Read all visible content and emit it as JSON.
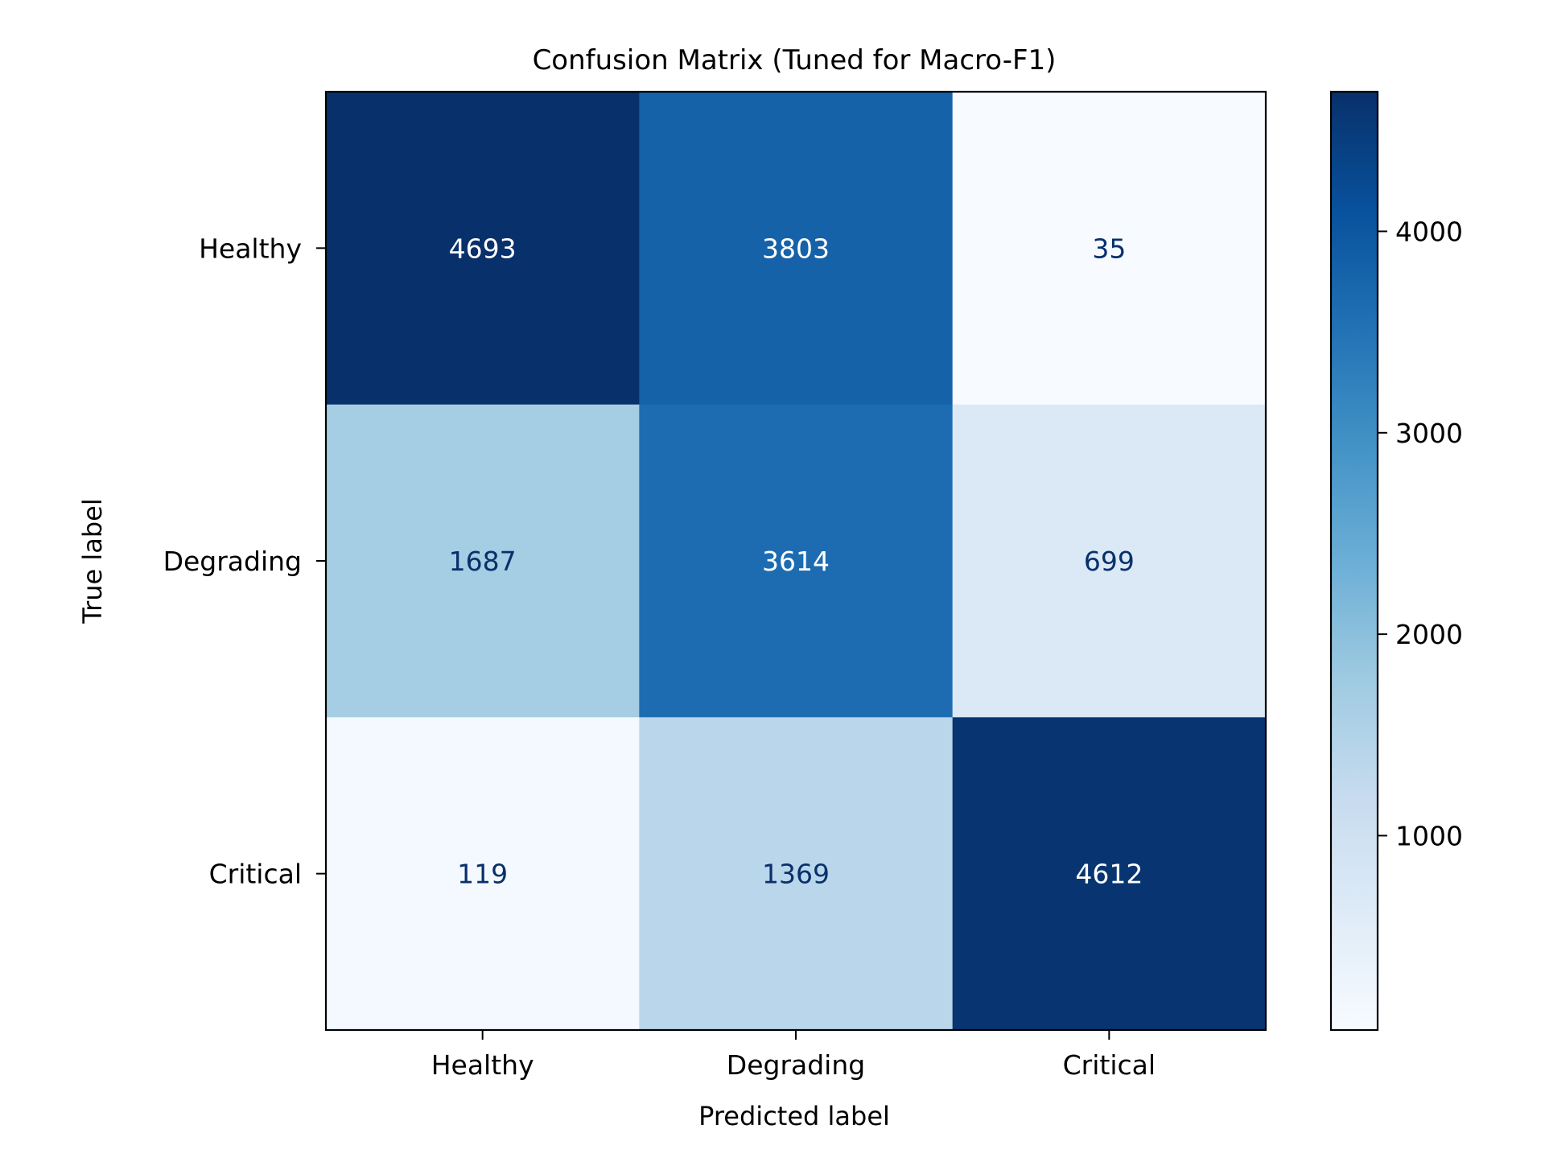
{
  "chart_data": {
    "type": "heatmap",
    "title": "Confusion Matrix (Tuned for Macro-F1)",
    "xlabel": "Predicted label",
    "ylabel": "True label",
    "x_categories": [
      "Healthy",
      "Degrading",
      "Critical"
    ],
    "y_categories": [
      "Healthy",
      "Degrading",
      "Critical"
    ],
    "values": [
      [
        4693,
        3803,
        35
      ],
      [
        1687,
        3614,
        699
      ],
      [
        119,
        1369,
        4612
      ]
    ],
    "colormap": "Blues",
    "colorbar": {
      "min": 35,
      "max": 4693,
      "ticks": [
        1000,
        2000,
        3000,
        4000
      ],
      "tick_labels": [
        "1000",
        "2000",
        "3000",
        "4000"
      ]
    },
    "grid": false,
    "colors": {
      "light_text": "#ffffff",
      "dark_text": "#08306b"
    }
  }
}
